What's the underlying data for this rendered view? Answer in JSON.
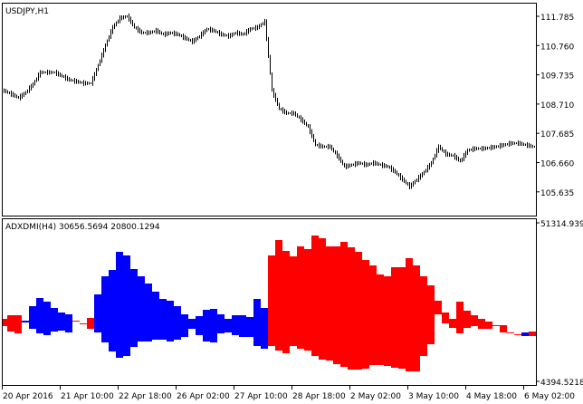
{
  "main_pane": {
    "title": "USDJPY,H1",
    "price_ticks": [
      "111.785",
      "110.760",
      "109.735",
      "108.710",
      "107.685",
      "106.660",
      "105.635"
    ],
    "bar_color": "#000000"
  },
  "indicator_pane": {
    "title": "ADXDMI(H4) 30656.5694 20800.1294",
    "max_label": "51314.9390",
    "min_label": "4394.5218",
    "up_color": "#0000ff",
    "down_color": "#ff0000"
  },
  "time_axis": {
    "labels": [
      "20 Apr 2016",
      "21 Apr 10:00",
      "22 Apr 18:00",
      "26 Apr 02:00",
      "27 Apr 10:00",
      "28 Apr 18:00",
      "2 May 02:00",
      "3 May 10:00",
      "4 May 18:00",
      "6 May 02:00"
    ]
  },
  "chart_data": [
    {
      "type": "line",
      "title": "USDJPY,H1",
      "ylim": [
        105.635,
        111.785
      ],
      "close_samples": [
        109.18,
        109.06,
        108.93,
        109.12,
        109.41,
        109.82,
        109.82,
        109.82,
        109.69,
        109.56,
        109.5,
        109.44,
        109.44,
        110.07,
        110.77,
        111.4,
        111.72,
        111.79,
        111.4,
        111.21,
        111.21,
        111.28,
        111.15,
        111.21,
        111.15,
        111.02,
        110.9,
        111.09,
        111.34,
        111.28,
        111.15,
        111.09,
        111.21,
        111.15,
        111.34,
        111.4,
        111.6,
        109.18,
        108.55,
        108.39,
        108.39,
        108.17,
        107.91,
        107.28,
        107.22,
        107.22,
        106.9,
        106.52,
        106.58,
        106.65,
        106.58,
        106.65,
        106.58,
        106.52,
        106.33,
        106.07,
        105.82,
        106.07,
        106.33,
        106.65,
        107.22,
        106.96,
        106.9,
        106.71,
        107.09,
        107.15,
        107.15,
        107.18,
        107.22,
        107.28,
        107.34,
        107.34,
        107.28,
        107.22
      ]
    },
    {
      "type": "bar",
      "title": "ADXDMI(H4) 30656.5694 20800.1294",
      "ylim": [
        4394.5218,
        51314.939
      ],
      "bands": [
        [
          "red",
          22890,
          20750
        ],
        [
          "red",
          23970,
          19140
        ],
        [
          "red",
          23970,
          18600
        ],
        [
          "blue",
          22360,
          21820
        ],
        [
          "blue",
          26650,
          19940
        ],
        [
          "blue",
          29060,
          18600
        ],
        [
          "blue",
          27990,
          18070
        ],
        [
          "blue",
          26110,
          19140
        ],
        [
          "blue",
          24770,
          19410
        ],
        [
          "blue",
          24230,
          18870
        ],
        [
          "red",
          22360,
          22090
        ],
        [
          "red",
          21550,
          21290
        ],
        [
          "red",
          23160,
          19940
        ],
        [
          "blue",
          30130,
          18870
        ],
        [
          "blue",
          35490,
          15920
        ],
        [
          "blue",
          37370,
          13240
        ],
        [
          "blue",
          42730,
          11370
        ],
        [
          "blue",
          41660,
          11900
        ],
        [
          "blue",
          37640,
          14580
        ],
        [
          "blue",
          35490,
          16190
        ],
        [
          "blue",
          33350,
          16190
        ],
        [
          "blue",
          30940,
          16730
        ],
        [
          "blue",
          28790,
          16730
        ],
        [
          "blue",
          28260,
          16190
        ],
        [
          "blue",
          26650,
          16730
        ],
        [
          "blue",
          24230,
          17530
        ],
        [
          "blue",
          22890,
          19940
        ],
        [
          "blue",
          23700,
          18070
        ],
        [
          "blue",
          25570,
          16190
        ],
        [
          "blue",
          25840,
          15920
        ],
        [
          "blue",
          24230,
          18600
        ],
        [
          "blue",
          22890,
          18870
        ],
        [
          "blue",
          23970,
          18070
        ],
        [
          "blue",
          23970,
          17530
        ],
        [
          "blue",
          23430,
          17530
        ],
        [
          "blue",
          28790,
          14850
        ],
        [
          "blue",
          26110,
          14050
        ],
        [
          "red",
          41660,
          14850
        ],
        [
          "red",
          46220,
          13510
        ],
        [
          "red",
          43000,
          12710
        ],
        [
          "red",
          41390,
          14850
        ],
        [
          "red",
          44340,
          14050
        ],
        [
          "red",
          43540,
          13510
        ],
        [
          "red",
          47560,
          11900
        ],
        [
          "red",
          46750,
          10830
        ],
        [
          "red",
          44340,
          10560
        ],
        [
          "red",
          44340,
          9490
        ],
        [
          "red",
          45680,
          8680
        ],
        [
          "red",
          44070,
          7880
        ],
        [
          "red",
          42730,
          7880
        ],
        [
          "red",
          40320,
          8150
        ],
        [
          "red",
          38710,
          9220
        ],
        [
          "red",
          36030,
          9220
        ],
        [
          "red",
          35490,
          8950
        ],
        [
          "red",
          38180,
          8420
        ],
        [
          "red",
          38180,
          8150
        ],
        [
          "red",
          40860,
          7340
        ],
        [
          "red",
          38710,
          7340
        ],
        [
          "red",
          35490,
          11900
        ],
        [
          "red",
          32810,
          15390
        ],
        [
          "red",
          28260,
          24230
        ],
        [
          "red",
          24770,
          21550
        ],
        [
          "red",
          22890,
          20210
        ],
        [
          "red",
          27990,
          18600
        ],
        [
          "red",
          25310,
          20210
        ],
        [
          "red",
          23970,
          20750
        ],
        [
          "red",
          22890,
          19940
        ],
        [
          "red",
          22090,
          19940
        ],
        [
          "red",
          21020,
          20750
        ],
        [
          "red",
          21020,
          18870
        ],
        [
          "red",
          18870,
          18600
        ],
        [
          "red",
          18340,
          18070
        ],
        [
          "blue",
          18870,
          17800
        ],
        [
          "red",
          19140,
          17800
        ]
      ]
    }
  ]
}
